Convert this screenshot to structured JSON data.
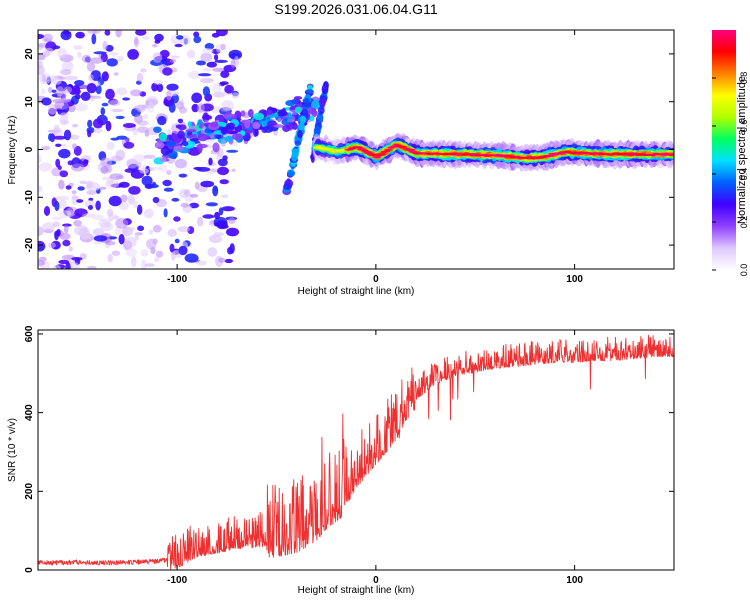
{
  "figure_title": "S199.2026.031.06.04.G11",
  "colors": {
    "snr_line": "#f03030",
    "axis": "#000000"
  },
  "chart_data": [
    {
      "type": "heatmap",
      "title": "S199.2026.031.06.04.G11",
      "xlabel": "Height of straight line (km)",
      "ylabel": "Frequency (Hz)",
      "xlim": [
        -170,
        150
      ],
      "ylim": [
        -25,
        25
      ],
      "xticks": [
        -100,
        0,
        100
      ],
      "yticks": [
        -20,
        -10,
        0,
        10,
        20
      ],
      "grid": false,
      "colorbar": {
        "label": "Normalized spectral amplitude",
        "range": [
          0,
          1
        ],
        "ticks": [
          "0.0",
          "0.2",
          "0.4",
          "0.6",
          "0.8"
        ],
        "colormap": [
          "#ffffff",
          "#e0c8ff",
          "#9040ff",
          "#4000ff",
          "#0060ff",
          "#00e0ff",
          "#00ff60",
          "#b0ff00",
          "#ffff00",
          "#ff8000",
          "#ff0000",
          "#ff0080"
        ]
      },
      "ridge": {
        "x": [
          -30,
          -20,
          -10,
          0,
          10,
          20,
          40,
          60,
          75,
          85,
          95,
          105,
          120,
          150
        ],
        "frequency": [
          0.5,
          -0.5,
          0.5,
          -1.5,
          1,
          -0.8,
          -1,
          -1.2,
          -1.8,
          -1.5,
          -0.5,
          -0.8,
          -1,
          -1
        ]
      }
    },
    {
      "type": "line",
      "xlabel": "Height of straight line (km)",
      "ylabel": "SNR (10 * v/v)",
      "xlim": [
        -170,
        150
      ],
      "ylim": [
        0,
        610
      ],
      "xticks": [
        -100,
        0,
        100
      ],
      "yticks": [
        0,
        200,
        400,
        600
      ],
      "grid": false,
      "series": [
        {
          "name": "SNR",
          "x": [
            -170,
            -150,
            -130,
            -110,
            -100,
            -90,
            -80,
            -70,
            -60,
            -50,
            -40,
            -30,
            -25,
            -20,
            -15,
            -10,
            -5,
            0,
            5,
            10,
            15,
            20,
            30,
            40,
            50,
            60,
            70,
            80,
            90,
            100,
            110,
            120,
            130,
            140,
            150
          ],
          "values": [
            18,
            20,
            18,
            22,
            30,
            60,
            70,
            80,
            85,
            90,
            100,
            130,
            160,
            180,
            200,
            250,
            280,
            310,
            340,
            370,
            420,
            450,
            490,
            510,
            520,
            530,
            535,
            540,
            545,
            545,
            550,
            550,
            555,
            560,
            560
          ]
        }
      ]
    }
  ]
}
